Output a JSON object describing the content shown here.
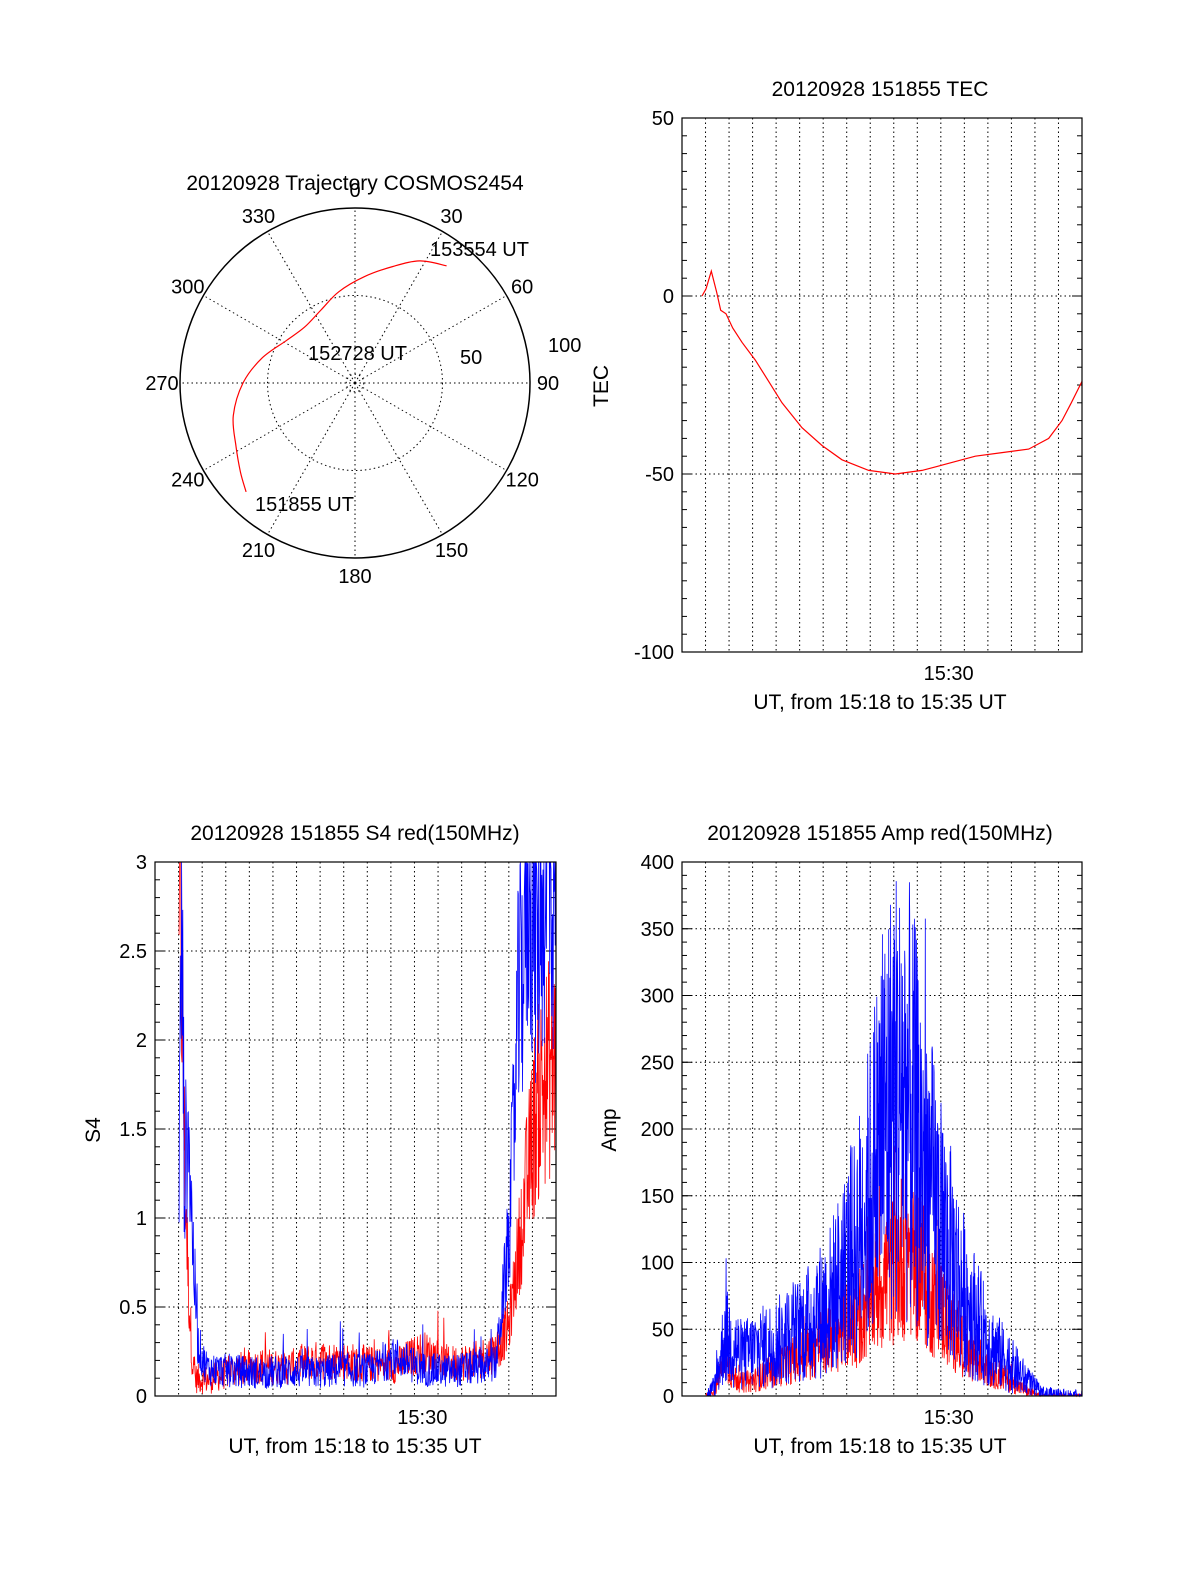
{
  "colors": {
    "red": "#ff0000",
    "blue": "#0000ff",
    "axis": "#000000"
  },
  "chart_data": [
    {
      "id": "trajectory",
      "type": "polar",
      "title": "20120928 Trajectory COSMOS2454",
      "azimuth_labels": [
        "0",
        "30",
        "60",
        "90",
        "120",
        "150",
        "180",
        "210",
        "240",
        "270",
        "300",
        "330"
      ],
      "zenith_ring_labels": [
        "50",
        "100"
      ],
      "zenith_max": 100,
      "track_color": "#ff0000",
      "track": [
        {
          "az": 225,
          "zen": 88
        },
        {
          "az": 232,
          "zen": 83
        },
        {
          "az": 242,
          "zen": 77
        },
        {
          "az": 255,
          "zen": 72
        },
        {
          "az": 270,
          "zen": 64
        },
        {
          "az": 285,
          "zen": 55
        },
        {
          "az": 302,
          "zen": 46
        },
        {
          "az": 318,
          "zen": 43
        },
        {
          "az": 335,
          "zen": 46
        },
        {
          "az": 350,
          "zen": 53
        },
        {
          "az": 5,
          "zen": 61
        },
        {
          "az": 18,
          "zen": 70
        },
        {
          "az": 28,
          "zen": 79
        },
        {
          "az": 38,
          "zen": 85
        }
      ],
      "annotations": [
        "153554 UT",
        "152728 UT",
        "151855 UT"
      ]
    },
    {
      "id": "tec",
      "type": "line",
      "title": "20120928 151855 TEC",
      "xlabel": "UT, from 15:18 to 15:35 UT",
      "ylabel": "TEC",
      "xlim": [
        15.3,
        15.6
      ],
      "ylim": [
        -100,
        50
      ],
      "yticks": [
        "50",
        "0",
        "-50",
        "-100"
      ],
      "ytick_values": [
        50,
        0,
        -50,
        -100
      ],
      "xtick_labels": [
        "15:30"
      ],
      "xtick_values": [
        15.5
      ],
      "series": [
        {
          "color": "#ff0000",
          "x": [
            15.315,
            15.318,
            15.322,
            15.326,
            15.329,
            15.333,
            15.338,
            15.345,
            15.355,
            15.365,
            15.375,
            15.39,
            15.405,
            15.42,
            15.44,
            15.46,
            15.48,
            15.49,
            15.5,
            15.52,
            15.54,
            15.56,
            15.575,
            15.585,
            15.592,
            15.6
          ],
          "y": [
            0,
            2,
            7,
            1,
            -4,
            -5,
            -9,
            -13,
            -18,
            -24,
            -30,
            -37,
            -42,
            -46,
            -49,
            -50,
            -49,
            -48,
            -47,
            -45,
            -44,
            -43,
            -40,
            -35,
            -30,
            -24
          ]
        }
      ]
    },
    {
      "id": "s4",
      "type": "line",
      "title": "20120928 151855 S4 red(150MHz)",
      "xlabel": "UT, from 15:18 to 15:35 UT",
      "ylabel": "S4",
      "xlim": [
        15.3,
        15.6
      ],
      "ylim": [
        0,
        3
      ],
      "yticks": [
        "3",
        "2.5",
        "2",
        "1.5",
        "1",
        "0.5",
        "0"
      ],
      "ytick_values": [
        3,
        2.5,
        2,
        1.5,
        1,
        0.5,
        0
      ],
      "xtick_labels": [
        "15:30"
      ],
      "xtick_values": [
        15.5
      ],
      "series": [
        {
          "color": "#ff0000",
          "x": [
            15.318,
            15.32,
            15.322,
            15.325,
            15.328,
            15.33,
            15.34,
            15.36,
            15.38,
            15.4,
            15.42,
            15.44,
            15.46,
            15.48,
            15.5,
            15.52,
            15.54,
            15.555,
            15.565,
            15.575,
            15.585,
            15.592,
            15.6
          ],
          "y": [
            3.0,
            2.4,
            1.4,
            0.6,
            0.2,
            0.1,
            0.09,
            0.15,
            0.17,
            0.16,
            0.2,
            0.2,
            0.18,
            0.17,
            0.25,
            0.18,
            0.2,
            0.25,
            0.4,
            1.0,
            1.6,
            1.8,
            1.9
          ]
        },
        {
          "color": "#0000ff",
          "x": [
            15.318,
            15.32,
            15.322,
            15.325,
            15.328,
            15.332,
            15.336,
            15.34,
            15.36,
            15.38,
            15.4,
            15.42,
            15.44,
            15.46,
            15.48,
            15.5,
            15.52,
            15.54,
            15.555,
            15.565,
            15.572,
            15.58,
            15.585,
            15.592,
            15.6
          ],
          "y": [
            1.3,
            2.8,
            1.2,
            1.6,
            0.9,
            0.3,
            0.2,
            0.15,
            0.14,
            0.13,
            0.14,
            0.13,
            0.15,
            0.14,
            0.22,
            0.15,
            0.14,
            0.16,
            0.18,
            0.9,
            2.2,
            3.0,
            2.6,
            3.0,
            2.8
          ]
        }
      ]
    },
    {
      "id": "amp",
      "type": "line",
      "title": "20120928 151855 Amp red(150MHz)",
      "xlabel": "UT, from 15:18 to 15:35 UT",
      "ylabel": "Amp",
      "xlim": [
        15.3,
        15.6
      ],
      "ylim": [
        0,
        400
      ],
      "yticks": [
        "400",
        "350",
        "300",
        "250",
        "200",
        "150",
        "100",
        "50",
        "0"
      ],
      "ytick_values": [
        400,
        350,
        300,
        250,
        200,
        150,
        100,
        50,
        0
      ],
      "xtick_labels": [
        "15:30"
      ],
      "xtick_values": [
        15.5
      ],
      "series": [
        {
          "color": "#ff0000",
          "x": [
            15.318,
            15.325,
            15.332,
            15.338,
            15.345,
            15.355,
            15.37,
            15.39,
            15.41,
            15.43,
            15.44,
            15.45,
            15.46,
            15.47,
            15.48,
            15.49,
            15.5,
            15.51,
            15.52,
            15.53,
            15.54,
            15.55,
            15.56,
            15.57,
            15.6
          ],
          "y": [
            0,
            5,
            30,
            15,
            10,
            12,
            20,
            30,
            45,
            55,
            70,
            85,
            100,
            110,
            95,
            70,
            55,
            40,
            30,
            20,
            15,
            8,
            3,
            0,
            0
          ]
        },
        {
          "color": "#0000ff",
          "x": [
            15.318,
            15.325,
            15.332,
            15.338,
            15.345,
            15.355,
            15.37,
            15.39,
            15.41,
            15.43,
            15.44,
            15.45,
            15.46,
            15.47,
            15.48,
            15.49,
            15.5,
            15.51,
            15.52,
            15.53,
            15.54,
            15.55,
            15.56,
            15.57,
            15.6
          ],
          "y": [
            0,
            8,
            45,
            40,
            30,
            35,
            40,
            50,
            70,
            110,
            150,
            200,
            230,
            220,
            180,
            140,
            110,
            80,
            60,
            40,
            30,
            20,
            10,
            2,
            0
          ]
        }
      ]
    }
  ]
}
